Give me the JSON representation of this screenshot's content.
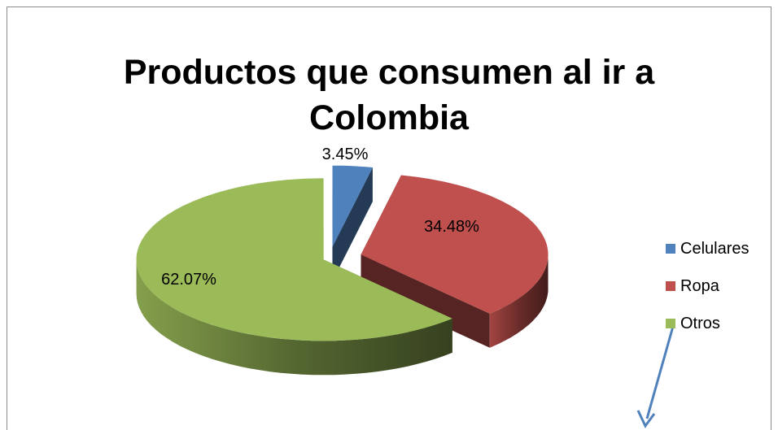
{
  "chart_data": {
    "type": "pie",
    "title": "Productos que consumen al ir a Colombia",
    "title_lines": [
      "Productos que consumen al ir a",
      "Colombia"
    ],
    "slices": [
      {
        "name": "Celulares",
        "value": 3.45,
        "label": "3.45%",
        "color": "#4f81bd"
      },
      {
        "name": "Ropa",
        "value": 34.48,
        "label": "34.48%",
        "color": "#c0504d"
      },
      {
        "name": "Otros",
        "value": 62.07,
        "label": "62.07%",
        "color": "#9bbb59"
      }
    ],
    "legend_position": "right",
    "style": "3d-exploded"
  }
}
